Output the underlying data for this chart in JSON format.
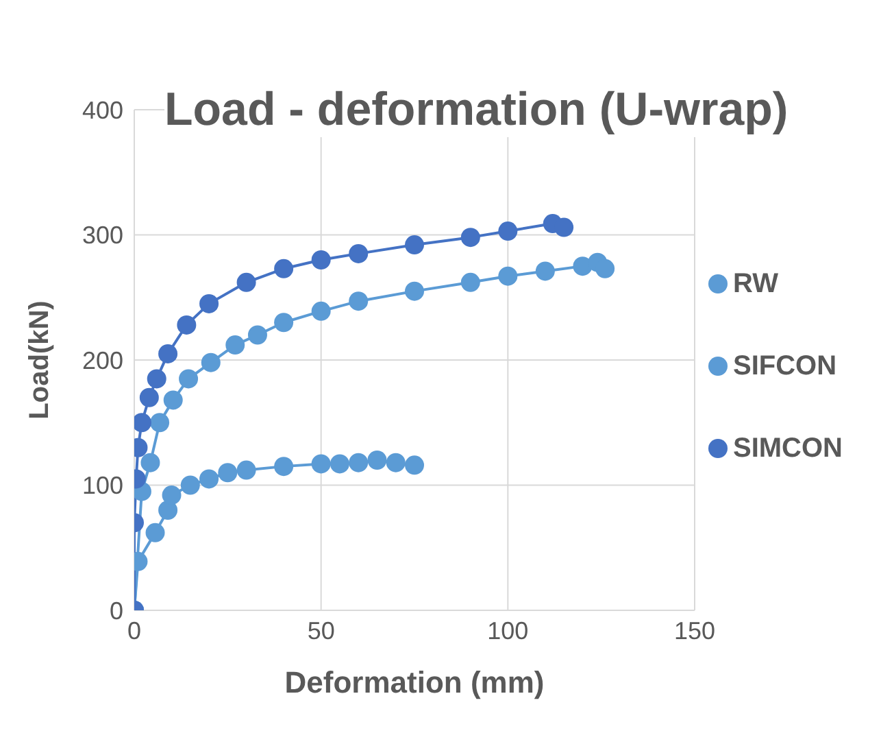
{
  "chart_data": {
    "type": "line",
    "title": "Load - deformation (U-wrap)",
    "xlabel": "Deformation (mm)",
    "ylabel": "Load(kN)",
    "xlim": [
      0,
      150
    ],
    "xticks": [
      0,
      50,
      100,
      150
    ],
    "ylim": [
      0,
      400
    ],
    "yticks": [
      0,
      100,
      200,
      300,
      400
    ],
    "grid": true,
    "legend": "right",
    "marker": "circle",
    "line_style": "solid",
    "series": [
      {
        "name": "RW",
        "color": "#5b9bd5",
        "x": [
          0,
          1,
          5.6,
          9,
          10,
          15,
          20,
          25,
          30,
          40,
          50,
          55,
          60,
          65,
          70,
          75
        ],
        "values": [
          0,
          39,
          62,
          80,
          92,
          100,
          105,
          110,
          112,
          115,
          117,
          117,
          118,
          120,
          118,
          116
        ]
      },
      {
        "name": "SIFCON",
        "color": "#5b9bd5",
        "x": [
          0,
          2,
          4.3,
          6.8,
          10.4,
          14.5,
          20.5,
          27,
          33,
          40,
          50,
          60,
          75,
          90,
          100,
          110,
          120,
          124,
          126
        ],
        "values": [
          0,
          95,
          118,
          150,
          168,
          185,
          198,
          212,
          220,
          230,
          239,
          247,
          255,
          262,
          267,
          271,
          275,
          278,
          273
        ]
      },
      {
        "name": "SIMCON",
        "color": "#4472c4",
        "x": [
          0,
          0,
          0.5,
          1,
          2,
          4,
          6,
          9,
          14,
          20,
          30,
          40,
          50,
          60,
          75,
          90,
          100,
          112,
          115
        ],
        "values": [
          0,
          70,
          105,
          130,
          150,
          170,
          185,
          205,
          228,
          245,
          262,
          273,
          280,
          285,
          292,
          298,
          303,
          309,
          306
        ]
      }
    ]
  }
}
